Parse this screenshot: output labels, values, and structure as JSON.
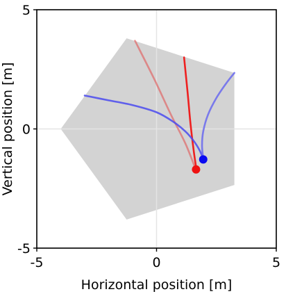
{
  "chart_data": {
    "type": "line",
    "xlabel": "Horizontal position [m]",
    "ylabel": "Vertical position [m]",
    "xlim": [
      -5,
      5
    ],
    "ylim": [
      -5,
      5
    ],
    "xticks": [
      -5,
      0,
      5
    ],
    "yticks": [
      -5,
      0,
      5
    ],
    "xtick_labels": [
      "-5",
      "0",
      "5"
    ],
    "ytick_labels": [
      "-5",
      "0",
      "5"
    ],
    "grid": true,
    "region": {
      "fill": "#d3d3d3",
      "vertices": [
        [
          -1.25,
          3.8
        ],
        [
          3.25,
          2.35
        ],
        [
          3.25,
          -2.35
        ],
        [
          -1.25,
          -3.8
        ],
        [
          -4.0,
          0.0
        ]
      ]
    },
    "series": [
      {
        "color": "#e06060",
        "opacity": 0.65,
        "x": [
          -0.9,
          -0.1,
          0.6,
          1.2,
          1.6
        ],
        "y": [
          3.7,
          2.1,
          0.6,
          -0.6,
          -1.6
        ]
      },
      {
        "color": "#ee2020",
        "opacity": 1.0,
        "x": [
          1.15,
          1.3,
          1.42,
          1.55,
          1.65
        ],
        "y": [
          3.0,
          1.5,
          0.2,
          -0.9,
          -1.6
        ]
      },
      {
        "color": "#4a4aee",
        "opacity": 0.85,
        "x": [
          -3.0,
          -2.0,
          -1.0,
          0.0,
          0.7,
          1.2,
          1.55,
          1.8,
          1.95
        ],
        "y": [
          1.4,
          1.2,
          1.0,
          0.7,
          0.3,
          -0.1,
          -0.5,
          -0.9,
          -1.25
        ]
      },
      {
        "color": "#6868ee",
        "opacity": 0.85,
        "x": [
          3.25,
          2.9,
          2.5,
          2.15,
          1.95,
          1.9,
          1.95
        ],
        "y": [
          2.35,
          1.9,
          1.3,
          0.6,
          -0.1,
          -0.7,
          -1.25
        ]
      }
    ],
    "points": [
      {
        "color": "#ee1111",
        "x": 1.65,
        "y": -1.7
      },
      {
        "color": "#0a0af0",
        "x": 1.95,
        "y": -1.28
      }
    ]
  }
}
